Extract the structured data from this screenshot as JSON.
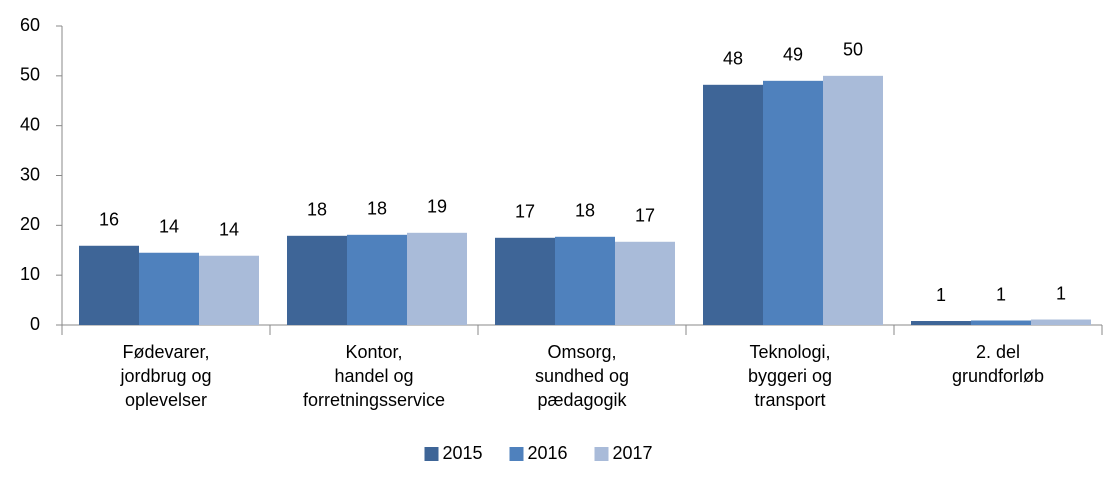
{
  "chart_data": {
    "type": "bar",
    "categories": [
      "Fødevarer,\njordbrug og\noplevelser",
      "Kontor,\nhandel og\nforretningsservice",
      "Omsorg,\nsundhed og\npædagogik",
      "Teknologi,\nbyggeri og\ntransport",
      "2. del\ngrundforløb"
    ],
    "series": [
      {
        "name": "2015",
        "color": "#3e6597",
        "values": [
          15.9,
          17.9,
          17.5,
          48.2,
          0.8
        ],
        "value_labels": [
          "16",
          "18",
          "17",
          "48",
          "1"
        ]
      },
      {
        "name": "2016",
        "color": "#4f81bd",
        "values": [
          14.5,
          18.1,
          17.7,
          49.0,
          0.9
        ],
        "value_labels": [
          "14",
          "18",
          "18",
          "49",
          "1"
        ]
      },
      {
        "name": "2017",
        "color": "#a9bbd9",
        "values": [
          13.9,
          18.5,
          16.7,
          50.0,
          1.1
        ],
        "value_labels": [
          "14",
          "19",
          "17",
          "50",
          "1"
        ]
      }
    ],
    "ylim": [
      0,
      60
    ],
    "yticks": [
      0,
      10,
      20,
      30,
      40,
      50,
      60
    ],
    "legend": "bottom"
  }
}
